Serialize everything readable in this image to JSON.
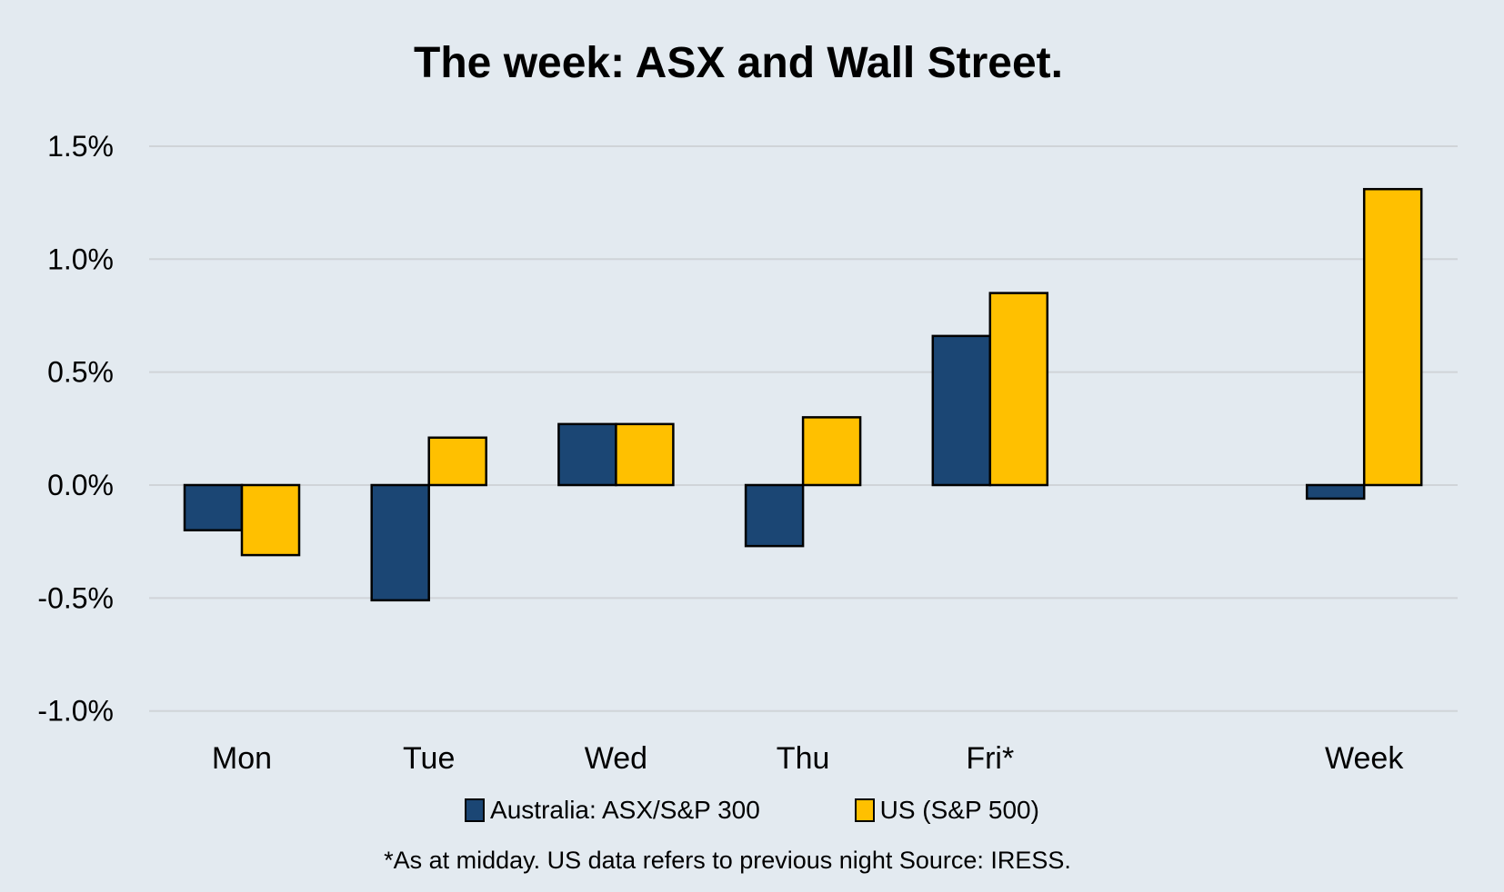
{
  "chart_data": {
    "type": "bar",
    "title": "The week:  ASX and Wall Street.",
    "categories": [
      "Mon",
      "Tue",
      "Wed",
      "Thu",
      "Fri*",
      "",
      "Week"
    ],
    "series": [
      {
        "name": "Australia: ASX/S&P 300",
        "color": "#1b4674",
        "values": [
          -0.2,
          -0.51,
          0.27,
          -0.27,
          0.66,
          null,
          -0.06
        ]
      },
      {
        "name": "US (S&P 500)",
        "color": "#ffc000",
        "values": [
          -0.31,
          0.21,
          0.27,
          0.3,
          0.85,
          null,
          1.31
        ]
      }
    ],
    "yticks": [
      1.5,
      1.0,
      0.5,
      0.0,
      -0.5,
      -1.0
    ],
    "ytick_labels": [
      "1.5%",
      "1.0%",
      "0.5%",
      "0.0%",
      "-0.5%",
      "-1.0%"
    ],
    "ylim": [
      -1.0,
      1.5
    ],
    "xlabel": "",
    "ylabel": "",
    "grid": true,
    "legend_position": "bottom",
    "footnote": "*As at midday. US data refers to previous night  Source:  IRESS."
  }
}
